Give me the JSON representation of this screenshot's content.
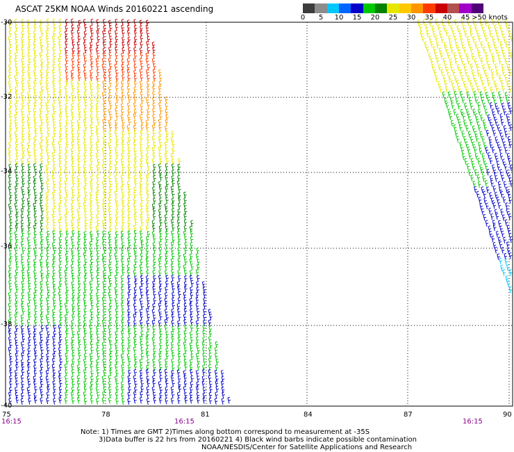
{
  "title": "ASCAT 25KM NOAA Winds 20160221 ascending",
  "colorbar": {
    "colors": [
      "#3c3c3c",
      "#8c8c8c",
      "#00c8ff",
      "#0064ff",
      "#0000c8",
      "#00c800",
      "#008200",
      "#e6e600",
      "#ffc800",
      "#ff9600",
      "#ff3c00",
      "#c80000",
      "#b45050",
      "#a000c8",
      "#500078"
    ],
    "labels": [
      "0",
      "5",
      "10",
      "15",
      "20",
      "25",
      "30",
      "35",
      "40",
      "45",
      ">50 knots"
    ]
  },
  "axes": {
    "lat_labels": [
      "-30",
      "-32",
      "-34",
      "-36",
      "-38",
      "-40"
    ],
    "lon_labels": [
      "75",
      "78",
      "81",
      "84",
      "87",
      "90"
    ]
  },
  "times": [
    "16:15",
    "16:15",
    "16:15"
  ],
  "notes": {
    "line1": "Note: 1) Times are GMT 2)Times along bottom correspond to measurement at -35S",
    "line2": "3)Data buffer is 22 hrs from 20160221 4) Black wind barbs indicate possible contamination",
    "line3": "NOAA/NESDIS/Center for Satellite Applications and Research"
  }
}
